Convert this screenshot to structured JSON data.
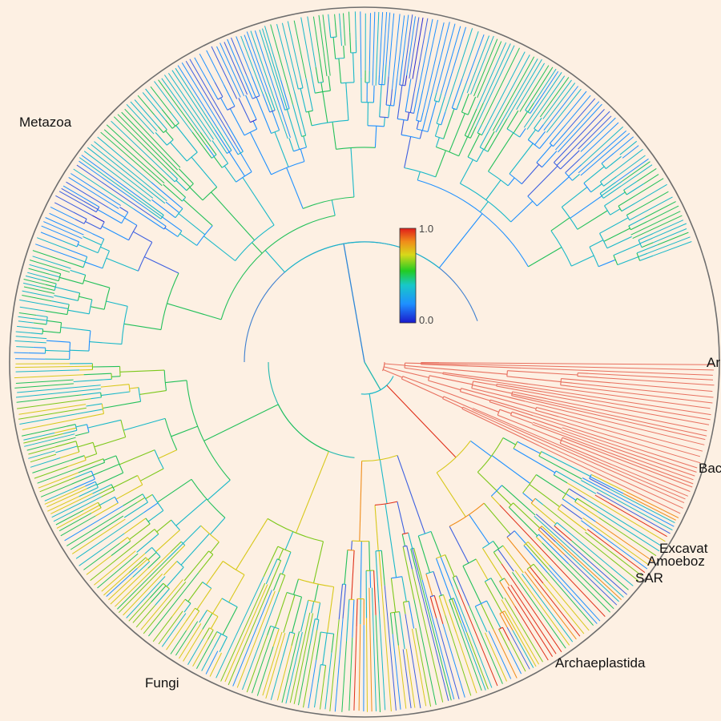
{
  "colors": {
    "background": "#fdf0e3",
    "outer_ring": "#6e6e6e",
    "bacteria_clade": "#e8705f",
    "scale_low": "#2b2bd6",
    "scale_high": "#e0201a"
  },
  "legend": {
    "max_label": "1.0",
    "min_label": "0.0",
    "gradient_stops": [
      "#1a1acc",
      "#1e90ff",
      "#18c8c8",
      "#22cc22",
      "#d8d81a",
      "#f08c1a",
      "#e01e1a"
    ]
  },
  "clades": [
    {
      "id": "metazoa",
      "label": "Metazoa"
    },
    {
      "id": "archaea",
      "label": "Ar"
    },
    {
      "id": "bacteria",
      "label": "Bac"
    },
    {
      "id": "excavata",
      "label": "Excavat"
    },
    {
      "id": "amoebozoa",
      "label": "Amoeboz"
    },
    {
      "id": "sar",
      "label": "SAR"
    },
    {
      "id": "archaeplastida",
      "label": "Archaeplastida"
    },
    {
      "id": "fungi",
      "label": "Fungi"
    }
  ]
}
